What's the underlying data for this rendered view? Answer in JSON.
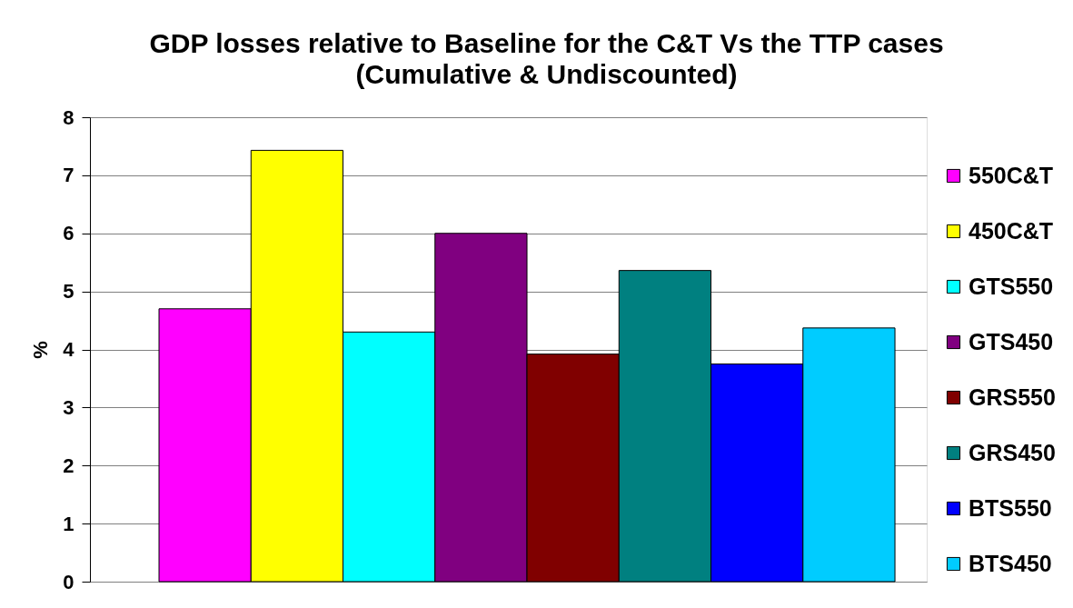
{
  "chart_data": {
    "type": "bar",
    "title": "GDP losses relative to Baseline for the C&T   Vs the TTP cases",
    "subtitle": "(Cumulative & Undiscounted)",
    "ylabel": "%",
    "categories": [
      null
    ],
    "series": [
      {
        "name": "550C&T",
        "color": "#ff00ff",
        "values": [
          4.7
        ]
      },
      {
        "name": "450C&T",
        "color": "#ffff00",
        "values": [
          7.43
        ]
      },
      {
        "name": "GTS550",
        "color": "#00ffff",
        "values": [
          4.3
        ]
      },
      {
        "name": "GTS450",
        "color": "#800080",
        "values": [
          6.0
        ]
      },
      {
        "name": "GRS550",
        "color": "#800000",
        "values": [
          3.92
        ]
      },
      {
        "name": "GRS450",
        "color": "#008080",
        "values": [
          5.36
        ]
      },
      {
        "name": "BTS550",
        "color": "#0000ff",
        "values": [
          3.75
        ]
      },
      {
        "name": "BTS450",
        "color": "#00ccff",
        "values": [
          4.37
        ]
      }
    ],
    "ylim": [
      0,
      8
    ],
    "yticks": [
      0,
      1,
      2,
      3,
      4,
      5,
      6,
      7,
      8
    ],
    "grid": "y",
    "legend": "right"
  }
}
